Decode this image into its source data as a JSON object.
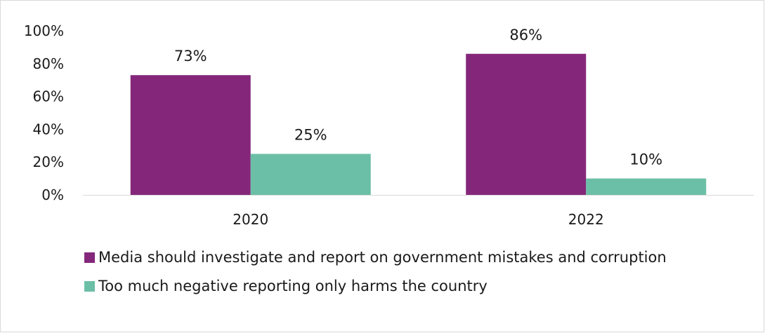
{
  "chart_data": {
    "type": "bar",
    "categories": [
      "2020",
      "2022"
    ],
    "series": [
      {
        "name": "Media should investigate and report on government mistakes and corruption",
        "values": [
          73,
          86
        ],
        "labels": [
          "73%",
          "86%"
        ],
        "color": "#84277a"
      },
      {
        "name": "Too much negative reporting only harms the country",
        "values": [
          25,
          10
        ],
        "labels": [
          "25%",
          "10%"
        ],
        "color": "#6bbfa6"
      }
    ],
    "ylim": [
      0,
      100
    ],
    "yticks": [
      "0%",
      "20%",
      "40%",
      "60%",
      "80%",
      "100%"
    ],
    "grid": false,
    "legend_position": "bottom-left"
  }
}
